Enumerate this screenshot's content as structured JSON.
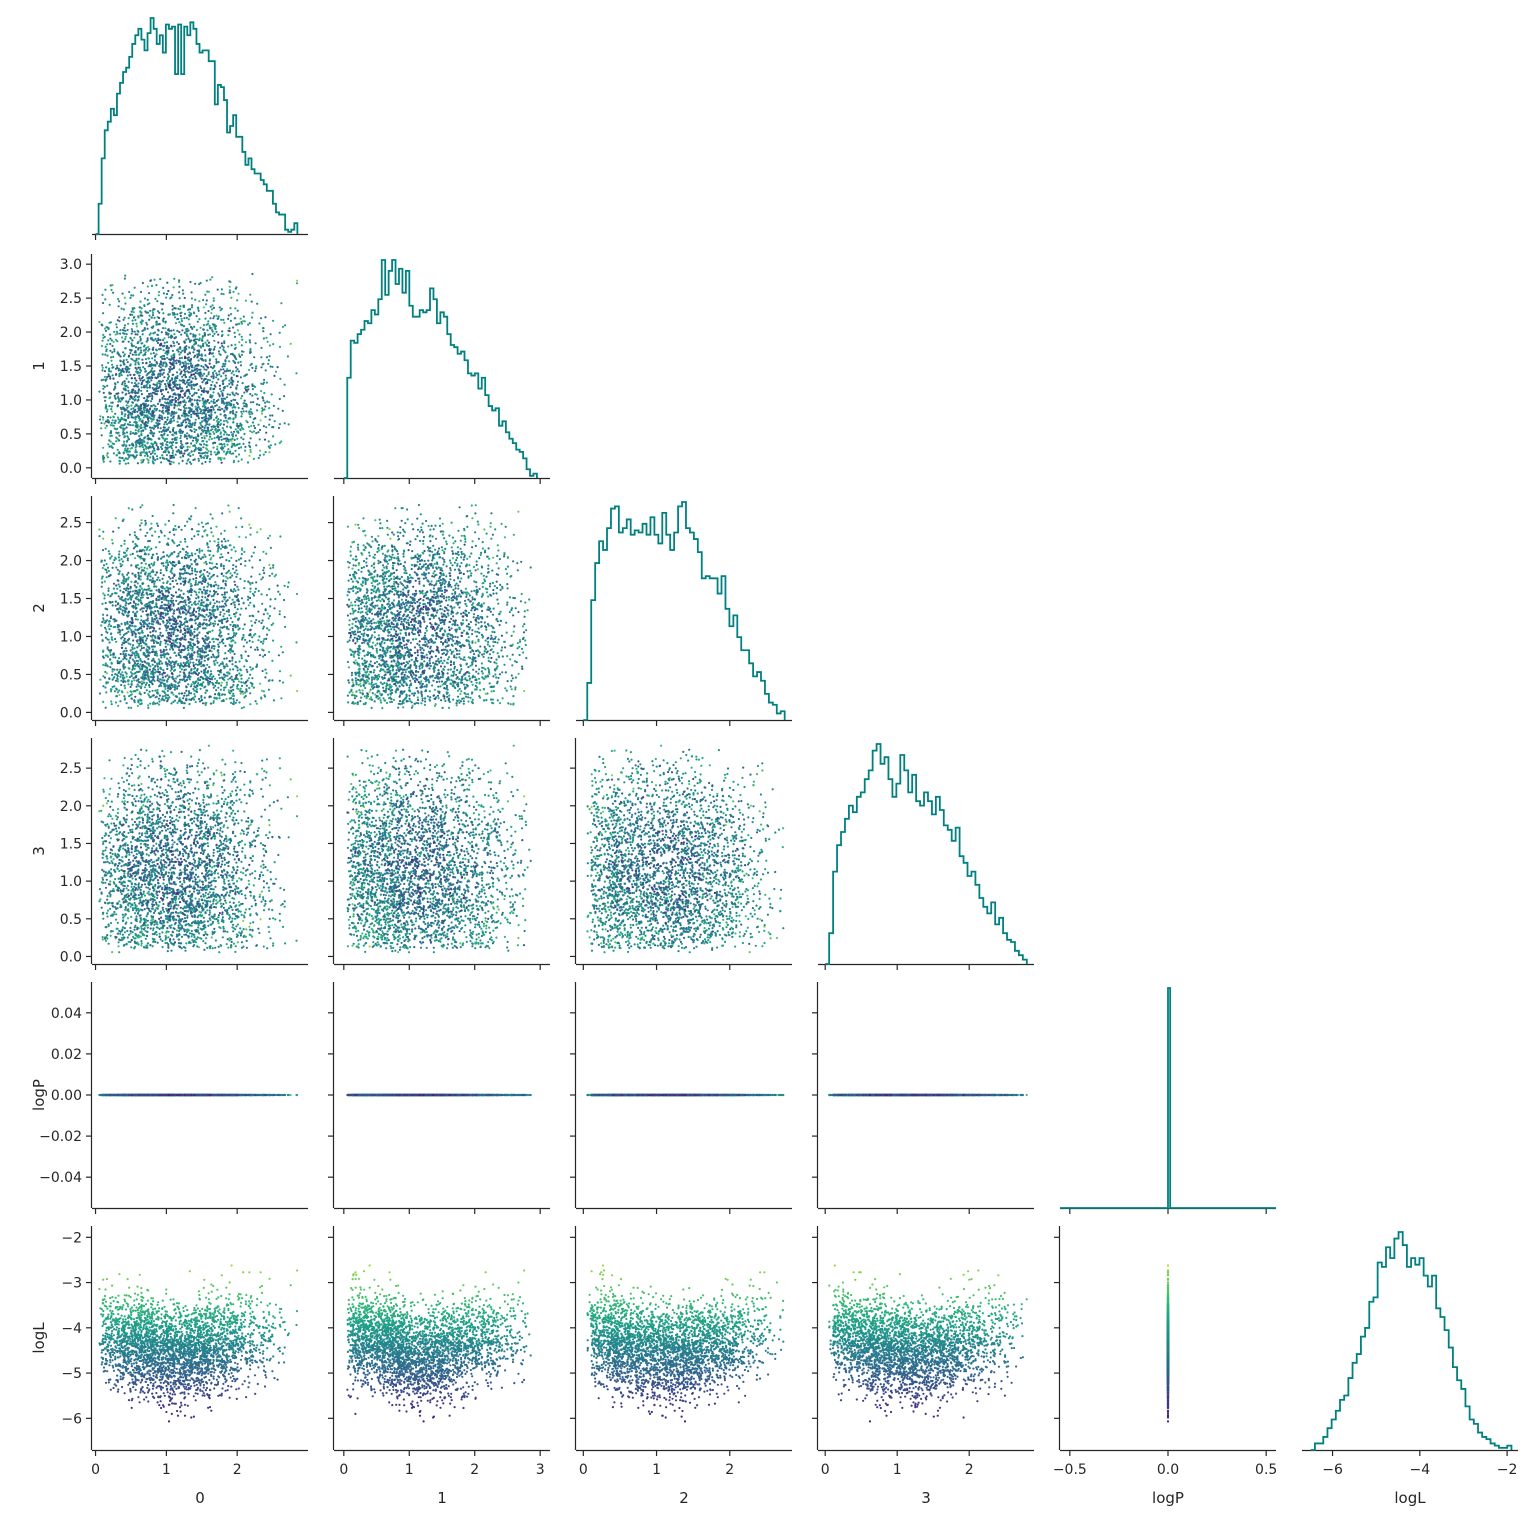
{
  "figure": {
    "type": "corner-pairplot",
    "variables": [
      "0",
      "1",
      "2",
      "3",
      "logP",
      "logL"
    ],
    "xlabels": [
      "0",
      "1",
      "2",
      "3",
      "logP",
      "logL"
    ],
    "ylabels": [
      "",
      "1",
      "2",
      "3",
      "logP",
      "logL"
    ],
    "colors": {
      "histogram": "#008080",
      "axis": "#262626",
      "colormap": "viridis",
      "colormap_stops": [
        "#440154",
        "#482878",
        "#3e4989",
        "#31688e",
        "#26828e",
        "#1f9e89",
        "#35b779",
        "#6ece58",
        "#b5de2b",
        "#fde725"
      ]
    },
    "legend": "none",
    "grid": false
  },
  "chart_data": {
    "type": "scatter",
    "subtype": "corner plot (pairwise scatter + marginal step histograms)",
    "color_by": "logL",
    "n_points_estimated": 3000,
    "axes": {
      "0": {
        "lim": [
          -0.05,
          3.0
        ],
        "ticks": [
          0,
          1,
          2
        ],
        "tick_labels": [
          "0",
          "1",
          "2"
        ]
      },
      "1": {
        "lim": [
          -0.15,
          3.15
        ],
        "ticks": [
          0,
          1,
          2,
          3
        ],
        "tick_labels": [
          "0",
          "1",
          "2",
          "3"
        ],
        "y_ticks": [
          0.0,
          0.5,
          1.0,
          1.5,
          2.0,
          2.5,
          3.0
        ],
        "y_tick_labels": [
          "0.0",
          "0.5",
          "1.0",
          "1.5",
          "2.0",
          "2.5",
          "3.0"
        ]
      },
      "2": {
        "lim": [
          -0.1,
          2.85
        ],
        "ticks": [
          0,
          1,
          2
        ],
        "tick_labels": [
          "0",
          "1",
          "2"
        ],
        "y_ticks": [
          0.0,
          0.5,
          1.0,
          1.5,
          2.0,
          2.5
        ],
        "y_tick_labels": [
          "0.0",
          "0.5",
          "1.0",
          "1.5",
          "2.0",
          "2.5"
        ]
      },
      "3": {
        "lim": [
          -0.1,
          2.9
        ],
        "ticks": [
          0,
          1,
          2
        ],
        "tick_labels": [
          "0",
          "1",
          "2"
        ],
        "y_ticks": [
          0.0,
          0.5,
          1.0,
          1.5,
          2.0,
          2.5
        ],
        "y_tick_labels": [
          "0.0",
          "0.5",
          "1.0",
          "1.5",
          "2.0",
          "2.5"
        ]
      },
      "logP": {
        "lim": [
          -0.55,
          0.55
        ],
        "ticks": [
          -0.5,
          0.0,
          0.5
        ],
        "tick_labels": [
          "−0.5",
          "0.0",
          "0.5"
        ],
        "y_lim": [
          -0.055,
          0.055
        ],
        "y_ticks": [
          -0.04,
          -0.02,
          0.0,
          0.02,
          0.04
        ],
        "y_tick_labels": [
          "−0.04",
          "−0.02",
          "0.00",
          "0.02",
          "0.04"
        ]
      },
      "logL": {
        "lim": [
          -6.7,
          -1.75
        ],
        "ticks": [
          -6,
          -4,
          -2
        ],
        "tick_labels": [
          "−6",
          "−4",
          "−2"
        ],
        "y_ticks": [
          -6,
          -5,
          -4,
          -3,
          -2
        ],
        "y_tick_labels": [
          "−6",
          "−5",
          "−4",
          "−3",
          "−2"
        ]
      }
    },
    "marginal_histograms": {
      "0": {
        "bin_edges_range": [
          0.0,
          2.85
        ],
        "counts": [
          0.0,
          0.14,
          0.35,
          0.48,
          0.52,
          0.58,
          0.55,
          0.65,
          0.7,
          0.75,
          0.77,
          0.82,
          0.88,
          0.92,
          0.95,
          0.9,
          0.85,
          0.93,
          1.0,
          0.95,
          0.88,
          0.92,
          0.84,
          0.97,
          0.95,
          0.96,
          0.74,
          0.97,
          0.74,
          0.96,
          0.92,
          0.98,
          0.95,
          0.88,
          0.84,
          0.85,
          0.85,
          0.8,
          0.8,
          0.6,
          0.69,
          0.68,
          0.62,
          0.47,
          0.5,
          0.55,
          0.45,
          0.45,
          0.38,
          0.32,
          0.35,
          0.3,
          0.28,
          0.28,
          0.25,
          0.23,
          0.2,
          0.2,
          0.14,
          0.1,
          0.09,
          0.09,
          0.02,
          0.01,
          0.02,
          0.05
        ]
      },
      "1": {
        "bin_edges_range": [
          0.0,
          2.95
        ],
        "counts": [
          0.0,
          0.46,
          0.63,
          0.62,
          0.66,
          0.68,
          0.72,
          0.71,
          0.77,
          0.75,
          0.82,
          1.0,
          0.84,
          0.95,
          1.0,
          0.89,
          0.96,
          0.85,
          0.95,
          0.79,
          0.74,
          0.74,
          0.77,
          0.76,
          0.77,
          0.87,
          0.82,
          0.71,
          0.76,
          0.74,
          0.66,
          0.61,
          0.6,
          0.57,
          0.58,
          0.54,
          0.48,
          0.47,
          0.48,
          0.41,
          0.46,
          0.38,
          0.33,
          0.31,
          0.32,
          0.24,
          0.26,
          0.21,
          0.18,
          0.16,
          0.13,
          0.12,
          0.09,
          0.04,
          0.01,
          0.02
        ]
      },
      "2": {
        "bin_edges_range": [
          0.0,
          2.75
        ],
        "counts": [
          0.0,
          0.17,
          0.55,
          0.72,
          0.82,
          0.78,
          0.88,
          0.97,
          0.98,
          0.86,
          0.88,
          0.92,
          0.85,
          0.87,
          0.86,
          0.9,
          0.85,
          0.93,
          0.85,
          0.81,
          0.95,
          0.85,
          0.78,
          0.86,
          0.98,
          1.0,
          0.88,
          0.86,
          0.83,
          0.77,
          0.65,
          0.66,
          0.65,
          0.65,
          0.58,
          0.66,
          0.51,
          0.43,
          0.48,
          0.38,
          0.32,
          0.32,
          0.26,
          0.2,
          0.22,
          0.18,
          0.12,
          0.08,
          0.07,
          0.03,
          0.04
        ]
      },
      "3": {
        "bin_edges_range": [
          0.0,
          2.8
        ],
        "counts": [
          0.0,
          0.14,
          0.42,
          0.54,
          0.6,
          0.66,
          0.72,
          0.69,
          0.76,
          0.78,
          0.84,
          0.88,
          0.97,
          1.0,
          0.91,
          0.94,
          0.84,
          0.76,
          0.82,
          0.95,
          0.88,
          0.78,
          0.86,
          0.74,
          0.72,
          0.78,
          0.74,
          0.68,
          0.76,
          0.7,
          0.63,
          0.61,
          0.56,
          0.62,
          0.49,
          0.46,
          0.4,
          0.42,
          0.36,
          0.3,
          0.26,
          0.23,
          0.28,
          0.18,
          0.21,
          0.14,
          0.11,
          0.1,
          0.06,
          0.04,
          0.02
        ]
      },
      "logP": {
        "bin_edges_range": [
          -0.55,
          0.55
        ],
        "counts": [
          0.0,
          0.0,
          0.0,
          0.0,
          0.0,
          0.0,
          0.0,
          0.0,
          0.0,
          0.0,
          0.0,
          0.0,
          0.0,
          0.0,
          0.0,
          0.0,
          0.0,
          0.0,
          0.0,
          0.0,
          0.0,
          0.0,
          0.0,
          0.0,
          0.0,
          0.0,
          0.0,
          0.0,
          0.0,
          0.0,
          0.0,
          0.0,
          0.0,
          0.0,
          0.0,
          0.0,
          0.0,
          0.0,
          0.0,
          0.0,
          0.0,
          0.0,
          0.0,
          0.0,
          0.0,
          0.0,
          0.0,
          0.0,
          0.0,
          0.0,
          1.0,
          0.0,
          0.0,
          0.0,
          0.0,
          0.0,
          0.0,
          0.0,
          0.0,
          0.0,
          0.0,
          0.0,
          0.0,
          0.0,
          0.0,
          0.0,
          0.0,
          0.0,
          0.0,
          0.0,
          0.0,
          0.0,
          0.0,
          0.0,
          0.0,
          0.0,
          0.0,
          0.0,
          0.0,
          0.0,
          0.0,
          0.0,
          0.0,
          0.0,
          0.0,
          0.0,
          0.0,
          0.0,
          0.0,
          0.0,
          0.0,
          0.0,
          0.0,
          0.0,
          0.0,
          0.0,
          0.0,
          0.0,
          0.0,
          0.0
        ]
      },
      "logL": {
        "bin_edges_range": [
          -6.5,
          -1.9
        ],
        "counts": [
          0.0,
          0.03,
          0.03,
          0.06,
          0.1,
          0.14,
          0.18,
          0.23,
          0.25,
          0.33,
          0.4,
          0.44,
          0.52,
          0.56,
          0.68,
          0.7,
          0.86,
          0.84,
          0.93,
          0.88,
          0.97,
          1.0,
          0.94,
          0.84,
          0.88,
          0.85,
          0.88,
          0.8,
          0.75,
          0.8,
          0.65,
          0.61,
          0.55,
          0.47,
          0.38,
          0.32,
          0.28,
          0.2,
          0.14,
          0.12,
          0.08,
          0.06,
          0.05,
          0.03,
          0.02,
          0.01,
          0.01,
          0.02
        ]
      }
    }
  }
}
